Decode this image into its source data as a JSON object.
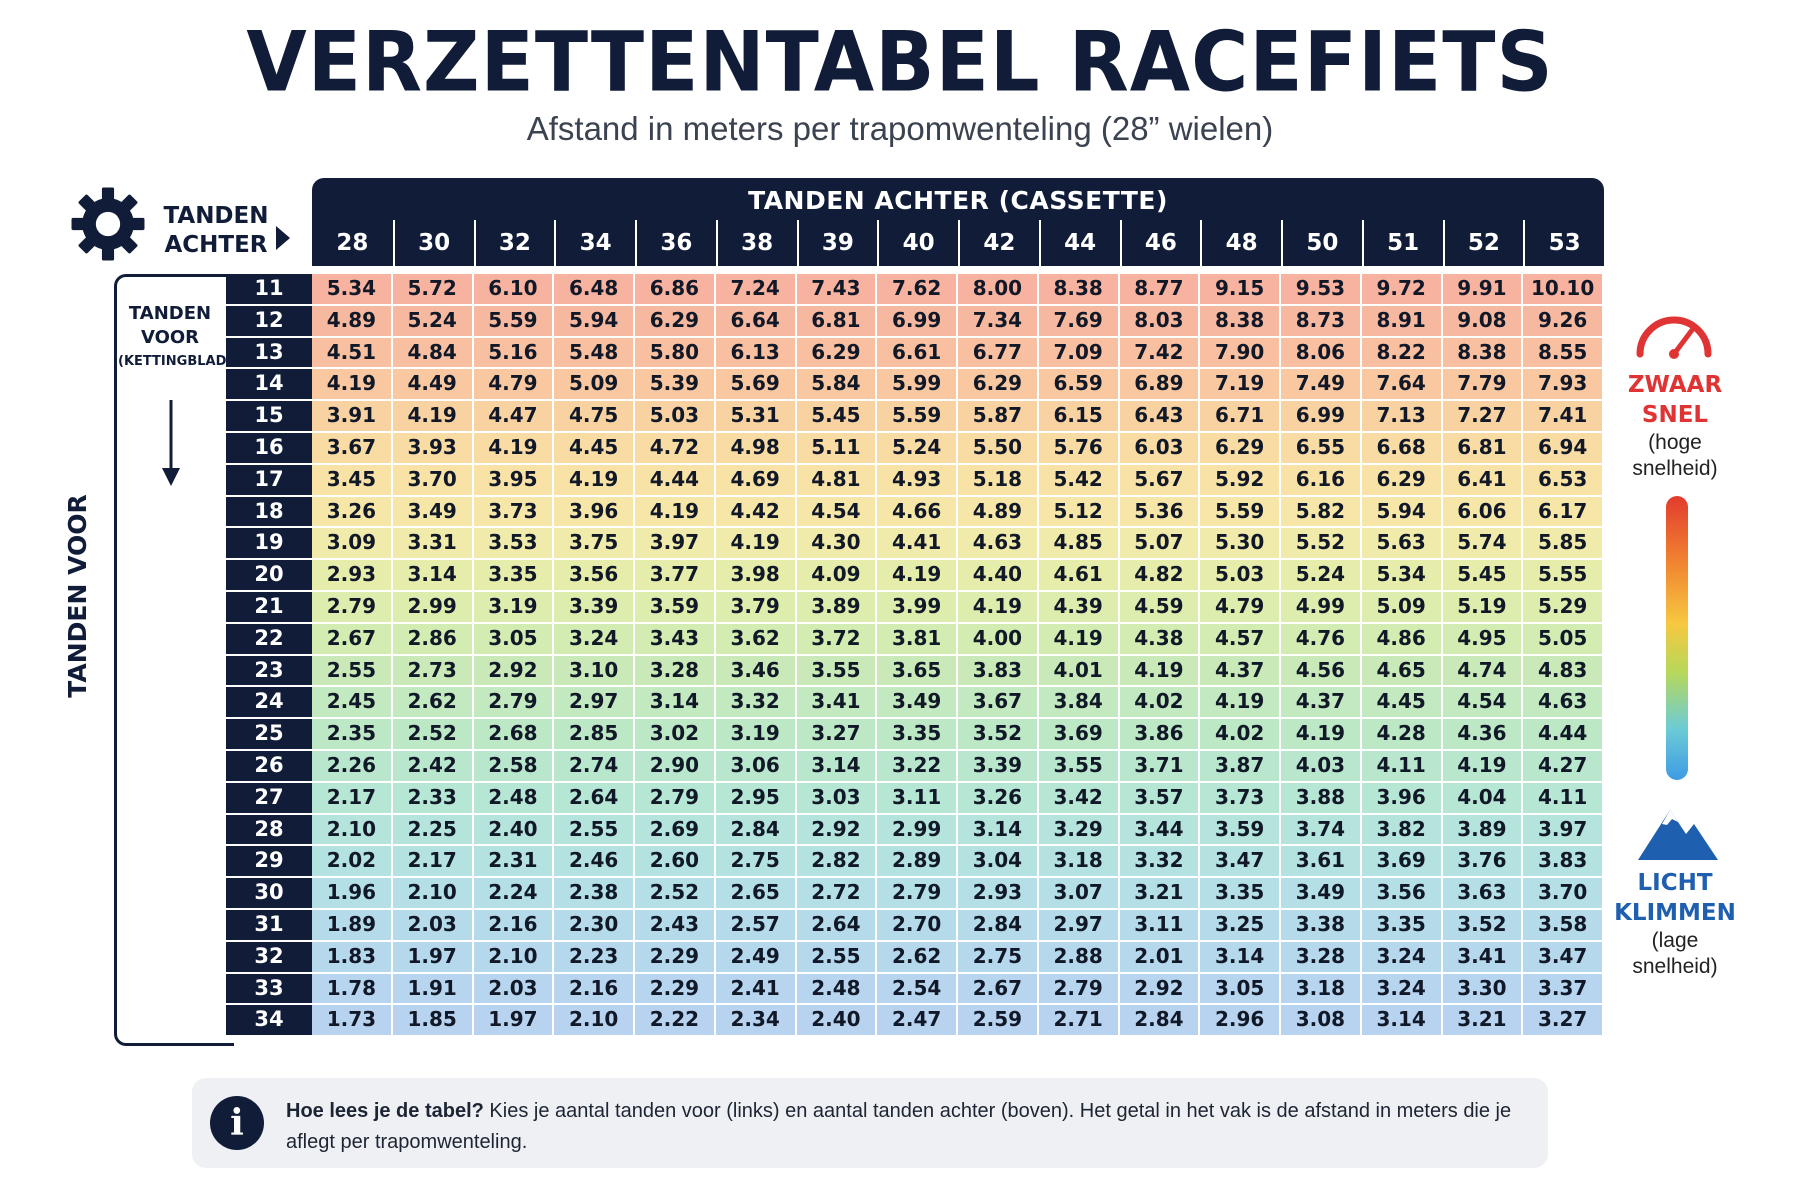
{
  "title": "VERZETTENTABEL RACEFIETS",
  "subtitle": "Afstand in meters per trapomwenteling (28” wielen)",
  "labels": {
    "rear_line1": "TANDEN",
    "rear_line2": "ACHTER",
    "front_line1": "TANDEN",
    "front_line2": "VOOR",
    "front_line3": "(KETTINGBLAD)",
    "front_vertical": "TANDEN VOOR",
    "header_title": "TANDEN ACHTER (CASSETTE)"
  },
  "legend": {
    "heavy_line1": "ZWAAR",
    "heavy_line2": "SNEL",
    "heavy_sub1": "(hoge",
    "heavy_sub2": "snelheid)",
    "light_line1": "LICHT",
    "light_line2": "KLIMMEN",
    "light_sub1": "(lage",
    "light_sub2": "snelheid)",
    "heavy_color": "#e03333",
    "light_color": "#1f5fb0"
  },
  "info": {
    "bold": "Hoe lees je de tabel?",
    "text": " Kies je aantal tanden voor (links) en aantal tanden achter (boven). Het getal in het vak is de afstand in meters die je aflegt per trapomwenteling.",
    "icon": "info-icon"
  },
  "icons": [
    "gear-icon",
    "arrow-right-icon",
    "arrow-down-icon",
    "gauge-icon",
    "mountain-icon",
    "info-icon"
  ],
  "chart_data": {
    "type": "table",
    "title": "VERZETTENTABEL RACEFIETS",
    "subtitle": "Afstand in meters per trapomwenteling (28” wielen)",
    "column_header": "TANDEN ACHTER (CASSETTE)",
    "row_header": "TANDEN VOOR",
    "columns": [
      "28",
      "30",
      "32",
      "34",
      "36",
      "38",
      "39",
      "40",
      "42",
      "44",
      "46",
      "48",
      "50",
      "51",
      "52",
      "53"
    ],
    "rows": [
      "11",
      "12",
      "13",
      "14",
      "15",
      "16",
      "17",
      "18",
      "19",
      "20",
      "21",
      "22",
      "23",
      "24",
      "25",
      "26",
      "27",
      "28",
      "29",
      "30",
      "31",
      "32",
      "33",
      "34"
    ],
    "values": [
      [
        "5.34",
        "5.72",
        "6.10",
        "6.48",
        "6.86",
        "7.24",
        "7.43",
        "7.62",
        "8.00",
        "8.38",
        "8.77",
        "9.15",
        "9.53",
        "9.72",
        "9.91",
        "10.10"
      ],
      [
        "4.89",
        "5.24",
        "5.59",
        "5.94",
        "6.29",
        "6.64",
        "6.81",
        "6.99",
        "7.34",
        "7.69",
        "8.03",
        "8.38",
        "8.73",
        "8.91",
        "9.08",
        "9.26"
      ],
      [
        "4.51",
        "4.84",
        "5.16",
        "5.48",
        "5.80",
        "6.13",
        "6.29",
        "6.61",
        "6.77",
        "7.09",
        "7.42",
        "7.90",
        "8.06",
        "8.22",
        "8.38",
        "8.55"
      ],
      [
        "4.19",
        "4.49",
        "4.79",
        "5.09",
        "5.39",
        "5.69",
        "5.84",
        "5.99",
        "6.29",
        "6.59",
        "6.89",
        "7.19",
        "7.49",
        "7.64",
        "7.79",
        "7.93"
      ],
      [
        "3.91",
        "4.19",
        "4.47",
        "4.75",
        "5.03",
        "5.31",
        "5.45",
        "5.59",
        "5.87",
        "6.15",
        "6.43",
        "6.71",
        "6.99",
        "7.13",
        "7.27",
        "7.41"
      ],
      [
        "3.67",
        "3.93",
        "4.19",
        "4.45",
        "4.72",
        "4.98",
        "5.11",
        "5.24",
        "5.50",
        "5.76",
        "6.03",
        "6.29",
        "6.55",
        "6.68",
        "6.81",
        "6.94"
      ],
      [
        "3.45",
        "3.70",
        "3.95",
        "4.19",
        "4.44",
        "4.69",
        "4.81",
        "4.93",
        "5.18",
        "5.42",
        "5.67",
        "5.92",
        "6.16",
        "6.29",
        "6.41",
        "6.53"
      ],
      [
        "3.26",
        "3.49",
        "3.73",
        "3.96",
        "4.19",
        "4.42",
        "4.54",
        "4.66",
        "4.89",
        "5.12",
        "5.36",
        "5.59",
        "5.82",
        "5.94",
        "6.06",
        "6.17"
      ],
      [
        "3.09",
        "3.31",
        "3.53",
        "3.75",
        "3.97",
        "4.19",
        "4.30",
        "4.41",
        "4.63",
        "4.85",
        "5.07",
        "5.30",
        "5.52",
        "5.63",
        "5.74",
        "5.85"
      ],
      [
        "2.93",
        "3.14",
        "3.35",
        "3.56",
        "3.77",
        "3.98",
        "4.09",
        "4.19",
        "4.40",
        "4.61",
        "4.82",
        "5.03",
        "5.24",
        "5.34",
        "5.45",
        "5.55"
      ],
      [
        "2.79",
        "2.99",
        "3.19",
        "3.39",
        "3.59",
        "3.79",
        "3.89",
        "3.99",
        "4.19",
        "4.39",
        "4.59",
        "4.79",
        "4.99",
        "5.09",
        "5.19",
        "5.29"
      ],
      [
        "2.67",
        "2.86",
        "3.05",
        "3.24",
        "3.43",
        "3.62",
        "3.72",
        "3.81",
        "4.00",
        "4.19",
        "4.38",
        "4.57",
        "4.76",
        "4.86",
        "4.95",
        "5.05"
      ],
      [
        "2.55",
        "2.73",
        "2.92",
        "3.10",
        "3.28",
        "3.46",
        "3.55",
        "3.65",
        "3.83",
        "4.01",
        "4.19",
        "4.37",
        "4.56",
        "4.65",
        "4.74",
        "4.83"
      ],
      [
        "2.45",
        "2.62",
        "2.79",
        "2.97",
        "3.14",
        "3.32",
        "3.41",
        "3.49",
        "3.67",
        "3.84",
        "4.02",
        "4.19",
        "4.37",
        "4.45",
        "4.54",
        "4.63"
      ],
      [
        "2.35",
        "2.52",
        "2.68",
        "2.85",
        "3.02",
        "3.19",
        "3.27",
        "3.35",
        "3.52",
        "3.69",
        "3.86",
        "4.02",
        "4.19",
        "4.28",
        "4.36",
        "4.44"
      ],
      [
        "2.26",
        "2.42",
        "2.58",
        "2.74",
        "2.90",
        "3.06",
        "3.14",
        "3.22",
        "3.39",
        "3.55",
        "3.71",
        "3.87",
        "4.03",
        "4.11",
        "4.19",
        "4.27"
      ],
      [
        "2.17",
        "2.33",
        "2.48",
        "2.64",
        "2.79",
        "2.95",
        "3.03",
        "3.11",
        "3.26",
        "3.42",
        "3.57",
        "3.73",
        "3.88",
        "3.96",
        "4.04",
        "4.11"
      ],
      [
        "2.10",
        "2.25",
        "2.40",
        "2.55",
        "2.69",
        "2.84",
        "2.92",
        "2.99",
        "3.14",
        "3.29",
        "3.44",
        "3.59",
        "3.74",
        "3.82",
        "3.89",
        "3.97"
      ],
      [
        "2.02",
        "2.17",
        "2.31",
        "2.46",
        "2.60",
        "2.75",
        "2.82",
        "2.89",
        "3.04",
        "3.18",
        "3.32",
        "3.47",
        "3.61",
        "3.69",
        "3.76",
        "3.83"
      ],
      [
        "1.96",
        "2.10",
        "2.24",
        "2.38",
        "2.52",
        "2.65",
        "2.72",
        "2.79",
        "2.93",
        "3.07",
        "3.21",
        "3.35",
        "3.49",
        "3.56",
        "3.63",
        "3.70"
      ],
      [
        "1.89",
        "2.03",
        "2.16",
        "2.30",
        "2.43",
        "2.57",
        "2.64",
        "2.70",
        "2.84",
        "2.97",
        "3.11",
        "3.25",
        "3.38",
        "3.35",
        "3.52",
        "3.58"
      ],
      [
        "1.83",
        "1.97",
        "2.10",
        "2.23",
        "2.29",
        "2.49",
        "2.55",
        "2.62",
        "2.75",
        "2.88",
        "2.01",
        "3.14",
        "3.28",
        "3.24",
        "3.41",
        "3.47"
      ],
      [
        "1.78",
        "1.91",
        "2.03",
        "2.16",
        "2.29",
        "2.41",
        "2.48",
        "2.54",
        "2.67",
        "2.79",
        "2.92",
        "3.05",
        "3.18",
        "3.24",
        "3.30",
        "3.37"
      ],
      [
        "1.73",
        "1.85",
        "1.97",
        "2.10",
        "2.22",
        "2.34",
        "2.40",
        "2.47",
        "2.59",
        "2.71",
        "2.84",
        "2.96",
        "3.08",
        "3.14",
        "3.21",
        "3.27"
      ]
    ],
    "row_colors": [
      "#f7b2a0",
      "#f7b8a0",
      "#f8bfa0",
      "#f9c8a0",
      "#f9d2a2",
      "#f9dba4",
      "#f8e2a6",
      "#f6e7a8",
      "#f0ebaa",
      "#e6edab",
      "#dcedae",
      "#d2ecb2",
      "#c9eab8",
      "#c2e9bf",
      "#bde8c6",
      "#b9e7cd",
      "#b6e6d4",
      "#b4e4db",
      "#b4e2e1",
      "#b4dfe6",
      "#b5dbea",
      "#b6d8ed",
      "#b7d5ef",
      "#b8d3f0"
    ]
  }
}
